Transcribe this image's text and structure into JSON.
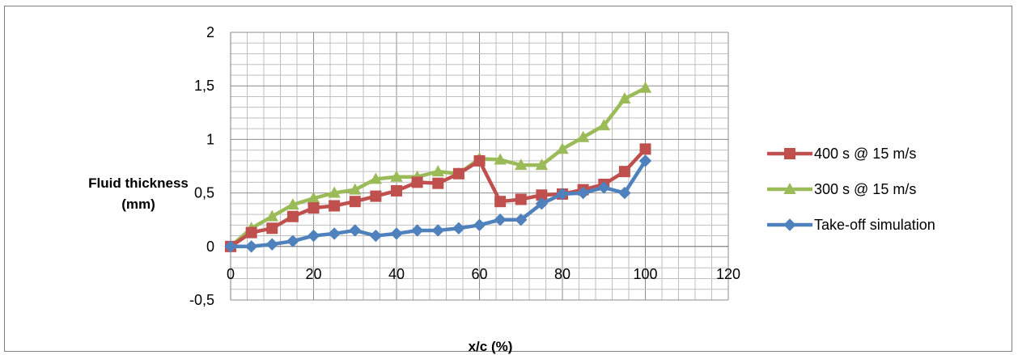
{
  "chart_data": {
    "type": "line",
    "title": "",
    "xlabel": "x/c (%)",
    "ylabel": "Fluid thickness (mm)",
    "xlim": [
      0,
      120
    ],
    "ylim": [
      -0.5,
      2
    ],
    "xticks": [
      "0",
      "20",
      "40",
      "60",
      "80",
      "100",
      "120"
    ],
    "yticks": [
      "-0,5",
      "0",
      "0,5",
      "1",
      "1,5",
      "2"
    ],
    "grid": true,
    "legend_position": "right",
    "series": [
      {
        "name": "400 s @ 15 m/s",
        "color": "#c0504d",
        "marker": "square",
        "x": [
          0,
          5,
          10,
          15,
          20,
          25,
          30,
          35,
          40,
          45,
          50,
          55,
          60,
          65,
          70,
          75,
          80,
          85,
          90,
          95,
          100
        ],
        "y": [
          0,
          0.13,
          0.17,
          0.28,
          0.36,
          0.38,
          0.42,
          0.47,
          0.52,
          0.6,
          0.59,
          0.68,
          0.8,
          0.42,
          0.44,
          0.48,
          0.49,
          0.53,
          0.58,
          0.7,
          0.91
        ]
      },
      {
        "name": "300 s @ 15 m/s",
        "color": "#9bbb59",
        "marker": "triangle",
        "x": [
          0,
          5,
          10,
          15,
          20,
          25,
          30,
          35,
          40,
          45,
          50,
          55,
          60,
          65,
          70,
          75,
          80,
          85,
          90,
          95,
          100
        ],
        "y": [
          0,
          0.17,
          0.28,
          0.39,
          0.45,
          0.5,
          0.53,
          0.63,
          0.65,
          0.65,
          0.7,
          0.68,
          0.82,
          0.81,
          0.76,
          0.76,
          0.91,
          1.02,
          1.13,
          1.38,
          1.48
        ]
      },
      {
        "name": "Take-off simulation",
        "color": "#4f81bd",
        "marker": "diamond",
        "x": [
          0,
          5,
          10,
          15,
          20,
          25,
          30,
          35,
          40,
          45,
          50,
          55,
          60,
          65,
          70,
          75,
          80,
          85,
          90,
          95,
          100
        ],
        "y": [
          0,
          0,
          0.02,
          0.05,
          0.1,
          0.12,
          0.15,
          0.1,
          0.12,
          0.15,
          0.15,
          0.17,
          0.2,
          0.25,
          0.25,
          0.4,
          0.49,
          0.5,
          0.55,
          0.5,
          0.8
        ]
      }
    ]
  }
}
